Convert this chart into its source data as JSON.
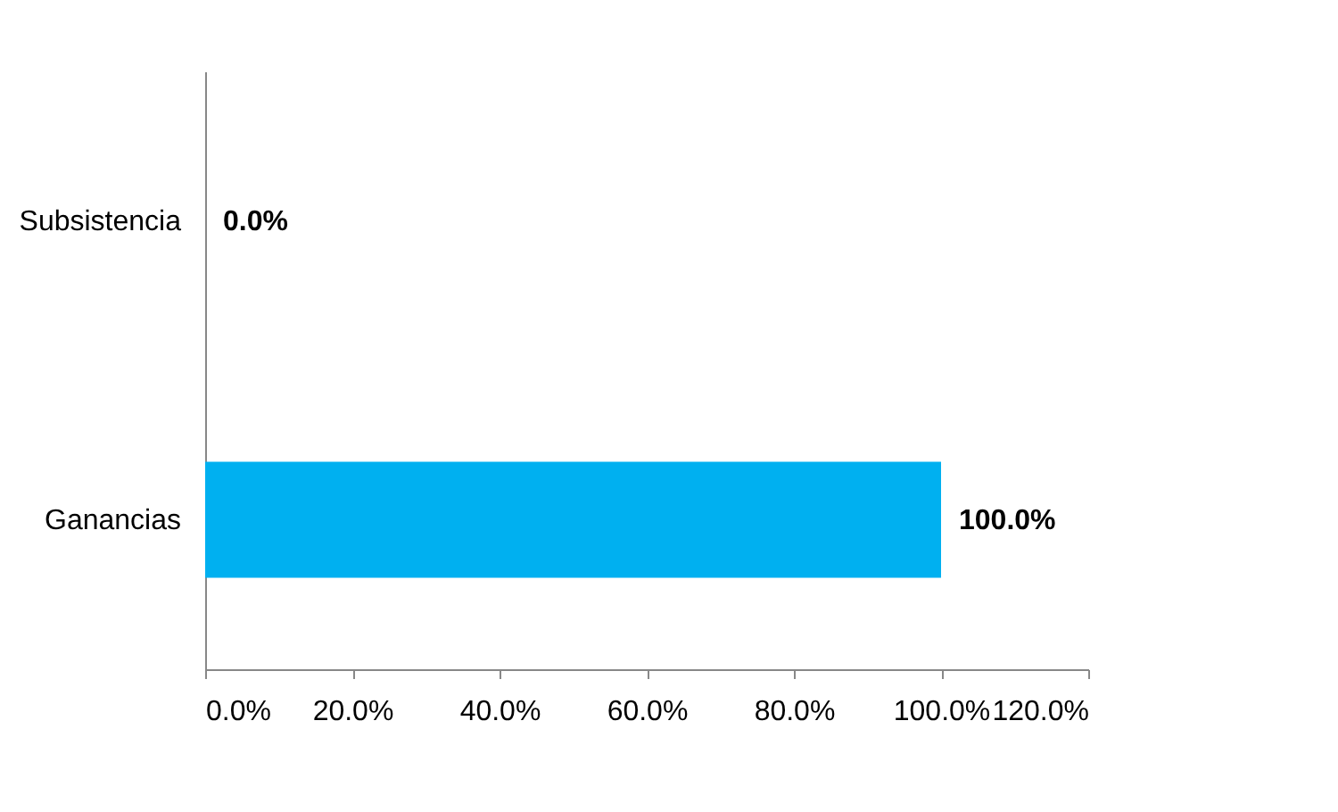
{
  "chart_data": {
    "type": "bar",
    "orientation": "horizontal",
    "categories": [
      "Subsistencia",
      "Ganancias"
    ],
    "values": [
      0,
      100
    ],
    "color": "#00b0f0",
    "value_labels": [
      "0.0%",
      "100.0%"
    ],
    "xlim": [
      0,
      120
    ],
    "xticks": [
      {
        "value": 0,
        "label": "0.0%"
      },
      {
        "value": 20,
        "label": "20.0%"
      },
      {
        "value": 40,
        "label": "40.0%"
      },
      {
        "value": 60,
        "label": "60.0%"
      },
      {
        "value": 80,
        "label": "80.0%"
      },
      {
        "value": 100,
        "label": "100.0%"
      },
      {
        "value": 120,
        "label": "120.0%"
      }
    ],
    "grid": false
  }
}
